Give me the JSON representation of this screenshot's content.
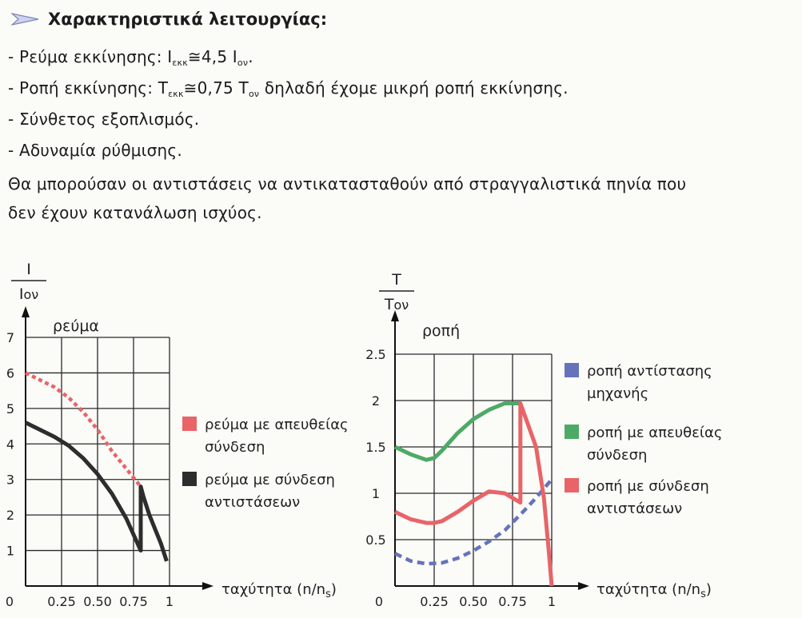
{
  "heading": {
    "text": "Χαρακτηριστικά λειτουργίας:"
  },
  "bullets": [
    {
      "prefix": "- Ρεύμα εκκίνησης: I",
      "sub1": "εκκ",
      "mid": "≅4,5 I",
      "sub2": "ον",
      "suffix": "."
    },
    {
      "prefix": "- Ροπή εκκίνησης: T",
      "sub1": "εκκ",
      "mid": "≅0,75 T",
      "sub2": "ον",
      "suffix": " δηλαδή έχομε μικρή ροπή εκκίνησης."
    },
    {
      "text": "- Σύνθετος εξοπλισμός."
    },
    {
      "text": "- Αδυναμία ρύθμισης."
    }
  ],
  "paragraph": {
    "line1": "Θα μπορούσαν οι αντιστάσεις να αντικατασταθούν από στραγγαλιστικά πηνία που",
    "line2": "δεν έχουν κατανάλωση ισχύος."
  },
  "colors": {
    "red": "#e86468",
    "black": "#2d2d2d",
    "green": "#4caa66",
    "blue": "#6673bb",
    "grid": "#2a2a2a"
  },
  "chart_data": [
    {
      "type": "line",
      "title": "ρεύμα",
      "ylabel_top": "I",
      "ylabel_bottom": "Iον",
      "xlabel": "ταχύτητα (n/ns)",
      "origin_label": "0",
      "xlim": [
        0,
        1
      ],
      "ylim": [
        0,
        7
      ],
      "x_ticks": [
        "0.25",
        "0.50",
        "0.75",
        "1"
      ],
      "y_ticks": [
        "1",
        "2",
        "3",
        "4",
        "5",
        "6",
        "7"
      ],
      "grid": true,
      "legend_position": "right",
      "series": [
        {
          "name": "ρεύμα με απευθείας σύνδεση",
          "color": "red",
          "style": "dotted",
          "x": [
            0,
            0.1,
            0.2,
            0.3,
            0.4,
            0.5,
            0.6,
            0.7,
            0.8
          ],
          "y": [
            6.0,
            5.8,
            5.6,
            5.3,
            4.9,
            4.4,
            3.8,
            3.3,
            2.8
          ]
        },
        {
          "name": "ρεύμα με σύνδεση αντιστάσεων",
          "color": "black",
          "style": "solid",
          "x": [
            0,
            0.1,
            0.2,
            0.3,
            0.4,
            0.5,
            0.6,
            0.7,
            0.8,
            0.8,
            0.82,
            0.86,
            0.9,
            0.94,
            0.98
          ],
          "y": [
            4.6,
            4.4,
            4.2,
            3.95,
            3.6,
            3.15,
            2.6,
            1.9,
            1.0,
            2.8,
            2.5,
            2.0,
            1.6,
            1.2,
            0.7
          ]
        }
      ]
    },
    {
      "type": "line",
      "title": "ροπή",
      "ylabel_top": "T",
      "ylabel_bottom": "Tον",
      "xlabel": "ταχύτητα (n/ns)",
      "origin_label": "0",
      "xlim": [
        0,
        1
      ],
      "ylim": [
        0,
        2.5
      ],
      "x_ticks": [
        "0.25",
        "0.50",
        "0.75",
        "1"
      ],
      "y_ticks": [
        "0.5",
        "1",
        "1.5",
        "2",
        "2.5"
      ],
      "grid": true,
      "legend_position": "right",
      "series": [
        {
          "name": "ροπή αντίστασης μηχανής",
          "color": "blue",
          "style": "dashed",
          "x": [
            0,
            0.1,
            0.2,
            0.3,
            0.4,
            0.5,
            0.6,
            0.7,
            0.8,
            0.9,
            1.0
          ],
          "y": [
            0.35,
            0.27,
            0.24,
            0.25,
            0.3,
            0.38,
            0.48,
            0.6,
            0.77,
            0.95,
            1.15
          ]
        },
        {
          "name": "ροπή με απευθείας σύνδεση",
          "color": "green",
          "style": "solid",
          "x": [
            0,
            0.1,
            0.2,
            0.25,
            0.3,
            0.4,
            0.5,
            0.6,
            0.7,
            0.8
          ],
          "y": [
            1.5,
            1.42,
            1.36,
            1.38,
            1.46,
            1.65,
            1.8,
            1.9,
            1.97,
            1.97
          ]
        },
        {
          "name": "ροπή με σύνδεση αντιστάσεων",
          "color": "red",
          "style": "solid",
          "x": [
            0,
            0.1,
            0.2,
            0.25,
            0.3,
            0.4,
            0.5,
            0.6,
            0.7,
            0.8,
            0.8,
            0.9,
            0.95,
            0.98,
            1.0
          ],
          "y": [
            0.8,
            0.72,
            0.68,
            0.68,
            0.7,
            0.8,
            0.92,
            1.02,
            1.0,
            0.9,
            1.97,
            1.5,
            0.95,
            0.4,
            0.0
          ]
        }
      ]
    }
  ]
}
